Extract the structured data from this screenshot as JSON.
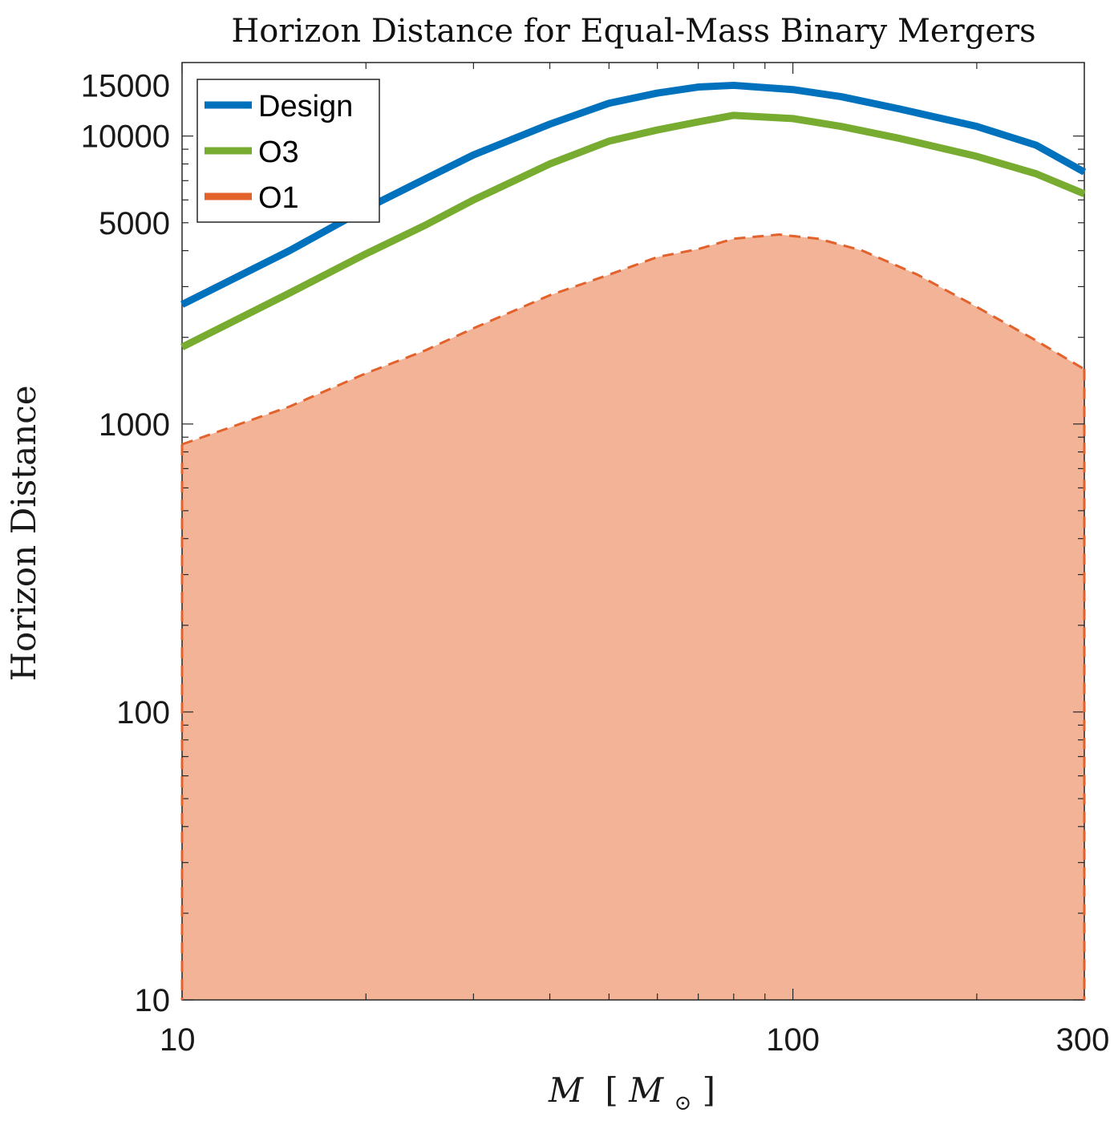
{
  "chart_data": {
    "type": "line",
    "title": "Horizon Distance for Equal-Mass Binary Mergers",
    "xlabel_main": "M",
    "xlabel_unit_open": "[",
    "xlabel_unit_sym": "M",
    "xlabel_unit_sub": "⊙",
    "xlabel_unit_close": "]",
    "ylabel": "Horizon  Distance",
    "xscale": "log",
    "yscale": "log",
    "xlim": [
      10,
      300
    ],
    "ylim": [
      10,
      18000
    ],
    "xticks": [
      10,
      100,
      300
    ],
    "xtick_labels": [
      "10",
      "100",
      "300"
    ],
    "yticks": [
      10,
      100,
      1000,
      5000,
      10000,
      15000
    ],
    "ytick_labels": [
      "10",
      "100",
      "1000",
      "5000",
      "10000",
      "15000"
    ],
    "legend_position": "top-left",
    "grid": false,
    "series": [
      {
        "name": "Design",
        "color": "#0072BD",
        "style": "solid",
        "x": [
          10,
          15,
          20,
          25,
          30,
          40,
          50,
          60,
          70,
          80,
          100,
          120,
          150,
          200,
          250,
          300
        ],
        "y": [
          2600,
          4000,
          5600,
          7100,
          8600,
          11000,
          13000,
          14100,
          14800,
          15000,
          14500,
          13700,
          12400,
          10800,
          9300,
          7500
        ]
      },
      {
        "name": "O3",
        "color": "#77AC30",
        "style": "solid",
        "x": [
          10,
          15,
          20,
          25,
          30,
          40,
          50,
          60,
          70,
          80,
          100,
          120,
          150,
          200,
          250,
          300
        ],
        "y": [
          1850,
          2850,
          3900,
          4900,
          6000,
          8000,
          9600,
          10500,
          11200,
          11800,
          11500,
          10800,
          9800,
          8500,
          7400,
          6300
        ]
      },
      {
        "name": "O1",
        "color": "#E3612B",
        "fill": "#F2B396",
        "style": "dashed",
        "x": [
          10,
          15,
          20,
          25,
          30,
          40,
          50,
          60,
          70,
          80,
          95,
          110,
          130,
          160,
          200,
          250,
          300
        ],
        "y": [
          850,
          1150,
          1500,
          1800,
          2150,
          2800,
          3300,
          3800,
          4050,
          4400,
          4550,
          4400,
          4000,
          3300,
          2550,
          1950,
          1550
        ]
      }
    ]
  }
}
